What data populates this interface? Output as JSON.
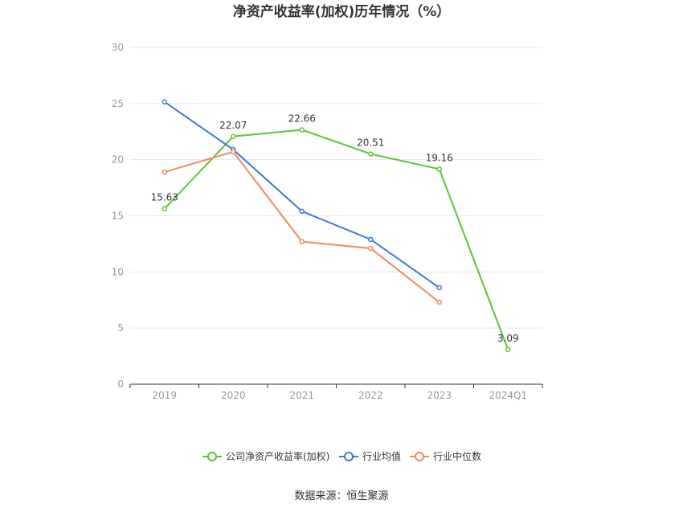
{
  "chart_data": {
    "type": "line",
    "title": "净资产收益率(加权)历年情况（%）",
    "categories": [
      "2019",
      "2020",
      "2021",
      "2022",
      "2023",
      "2024Q1"
    ],
    "ylim": [
      0,
      30
    ],
    "yticks": [
      0,
      5,
      10,
      15,
      20,
      25,
      30
    ],
    "grid": true,
    "legend_position": "bottom",
    "series": [
      {
        "name": "公司净资产收益率(加权)",
        "color": "#5fc42f",
        "values": [
          15.63,
          22.07,
          22.66,
          20.51,
          19.16,
          3.09
        ],
        "labels": [
          "15.63",
          "22.07",
          "22.66",
          "20.51",
          "19.16",
          "3.09"
        ]
      },
      {
        "name": "行业均值",
        "color": "#3c78d8",
        "values": [
          25.15,
          20.9,
          15.4,
          12.9,
          8.6,
          null
        ]
      },
      {
        "name": "行业中位数",
        "color": "#f08a5d",
        "values": [
          18.9,
          20.7,
          12.7,
          12.1,
          7.3,
          null
        ]
      }
    ],
    "source": "数据来源：恒生聚源"
  }
}
